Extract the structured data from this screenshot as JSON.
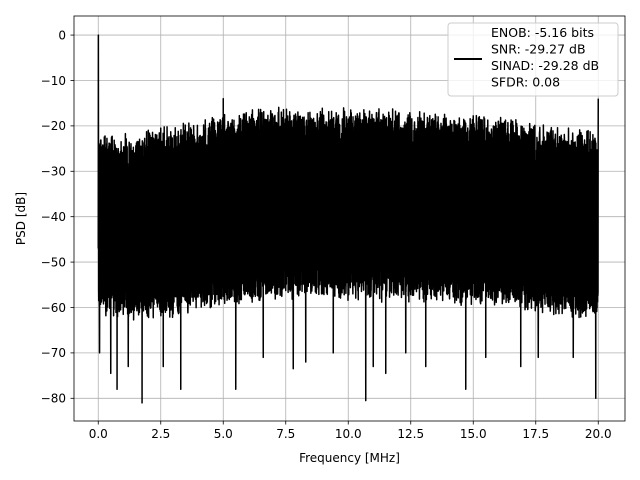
{
  "chart_data": {
    "type": "line",
    "title": "",
    "xlabel": "Frequency [MHz]",
    "ylabel": "PSD [dB]",
    "xlim": [
      -0.97,
      21.07
    ],
    "ylim": [
      -85.0,
      4.2
    ],
    "x_ticks": [
      0.0,
      2.5,
      5.0,
      7.5,
      10.0,
      12.5,
      15.0,
      17.5,
      20.0
    ],
    "x_tick_labels": [
      "0.0",
      "2.5",
      "5.0",
      "7.5",
      "10.0",
      "12.5",
      "15.0",
      "17.5",
      "20.0"
    ],
    "y_ticks": [
      0,
      -10,
      -20,
      -30,
      -40,
      -50,
      -60,
      -70,
      -80
    ],
    "y_tick_labels": [
      "0",
      "−10",
      "−20",
      "−30",
      "−40",
      "−50",
      "−60",
      "−70",
      "−80"
    ],
    "grid": true,
    "legend_placement": "upper right",
    "series": [
      {
        "name": "ENOB: -5.16 bits\nSNR: -29.27 dB\nSINAD: -29.28 dB\nSFDR: 0.08",
        "color": "#000000",
        "envelope": {
          "x": [
            0.0,
            0.1,
            0.5,
            1.0,
            2.0,
            3.0,
            4.0,
            5.0,
            6.0,
            7.0,
            8.0,
            9.0,
            10.0,
            11.0,
            12.0,
            13.0,
            14.0,
            15.0,
            16.0,
            17.0,
            18.0,
            19.0,
            20.0
          ],
          "upper": [
            -24,
            -23,
            -23.5,
            -23.5,
            -22.5,
            -21.5,
            -20,
            -19,
            -18,
            -17.5,
            -17.5,
            -17.5,
            -17.8,
            -17.8,
            -18,
            -18.5,
            -19,
            -19.2,
            -19.5,
            -20.5,
            -21,
            -22,
            -22.5
          ],
          "lower": [
            -60,
            -60,
            -61,
            -61,
            -61,
            -60.5,
            -59,
            -58,
            -57.5,
            -57,
            -56.5,
            -56.5,
            -56.5,
            -57,
            -57,
            -57,
            -58,
            -58,
            -58.5,
            -59.5,
            -60,
            -60.5,
            -61
          ]
        },
        "peaks": [
          {
            "x": 0.0,
            "y": 0.0
          },
          {
            "x": 5.0,
            "y": -14.0
          },
          {
            "x": 20.0,
            "y": -14.0
          },
          {
            "x": 10.1,
            "y": -16.5
          },
          {
            "x": 2.5,
            "y": -20.5
          }
        ],
        "dips": [
          {
            "x": 0.05,
            "y": -70
          },
          {
            "x": 0.5,
            "y": -74.5
          },
          {
            "x": 0.75,
            "y": -78
          },
          {
            "x": 1.2,
            "y": -73
          },
          {
            "x": 1.75,
            "y": -81
          },
          {
            "x": 2.6,
            "y": -73
          },
          {
            "x": 3.3,
            "y": -78
          },
          {
            "x": 5.5,
            "y": -78
          },
          {
            "x": 6.6,
            "y": -71
          },
          {
            "x": 7.8,
            "y": -73.5
          },
          {
            "x": 8.3,
            "y": -72
          },
          {
            "x": 9.4,
            "y": -70
          },
          {
            "x": 10.7,
            "y": -80.5
          },
          {
            "x": 11.0,
            "y": -73
          },
          {
            "x": 11.5,
            "y": -74.5
          },
          {
            "x": 12.3,
            "y": -70
          },
          {
            "x": 13.1,
            "y": -73
          },
          {
            "x": 14.7,
            "y": -78
          },
          {
            "x": 15.5,
            "y": -71
          },
          {
            "x": 16.9,
            "y": -73
          },
          {
            "x": 17.6,
            "y": -71
          },
          {
            "x": 19.0,
            "y": -71
          },
          {
            "x": 19.9,
            "y": -80
          }
        ]
      }
    ]
  }
}
